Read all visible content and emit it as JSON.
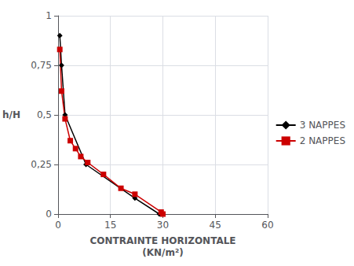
{
  "chart_data": {
    "type": "line",
    "xlabel": "CONTRAINTE HORIZONTALE\n(KN/m²)",
    "ylabel": "h/H",
    "series": [
      {
        "name": "3 NAPPES",
        "color": "#000000",
        "marker": "diamond",
        "x": [
          0.5,
          1.0,
          2.0,
          8.0,
          22.0,
          29.0
        ],
        "values": [
          0.9,
          0.75,
          0.5,
          0.25,
          0.08,
          0.0
        ]
      },
      {
        "name": "2 NAPPES",
        "color": "#cc0000",
        "marker": "square",
        "x": [
          0.5,
          1.0,
          2.0,
          3.5,
          5.0,
          6.5,
          8.5,
          13.0,
          18.0,
          22.0,
          29.5,
          30.0
        ],
        "values": [
          0.83,
          0.62,
          0.48,
          0.37,
          0.33,
          0.29,
          0.26,
          0.2,
          0.13,
          0.1,
          0.01,
          0.0
        ]
      }
    ],
    "xlim": [
      0,
      60
    ],
    "ylim": [
      0,
      1.0
    ],
    "xticks": [
      0,
      15,
      30,
      45,
      60
    ],
    "yticks": [
      0,
      {
        "value": 0.25,
        "label": "0,25"
      },
      {
        "value": 0.5,
        "label": "0,5"
      },
      {
        "value": 0.75,
        "label": "0,75"
      },
      1
    ],
    "grid": true,
    "legend": "right"
  }
}
